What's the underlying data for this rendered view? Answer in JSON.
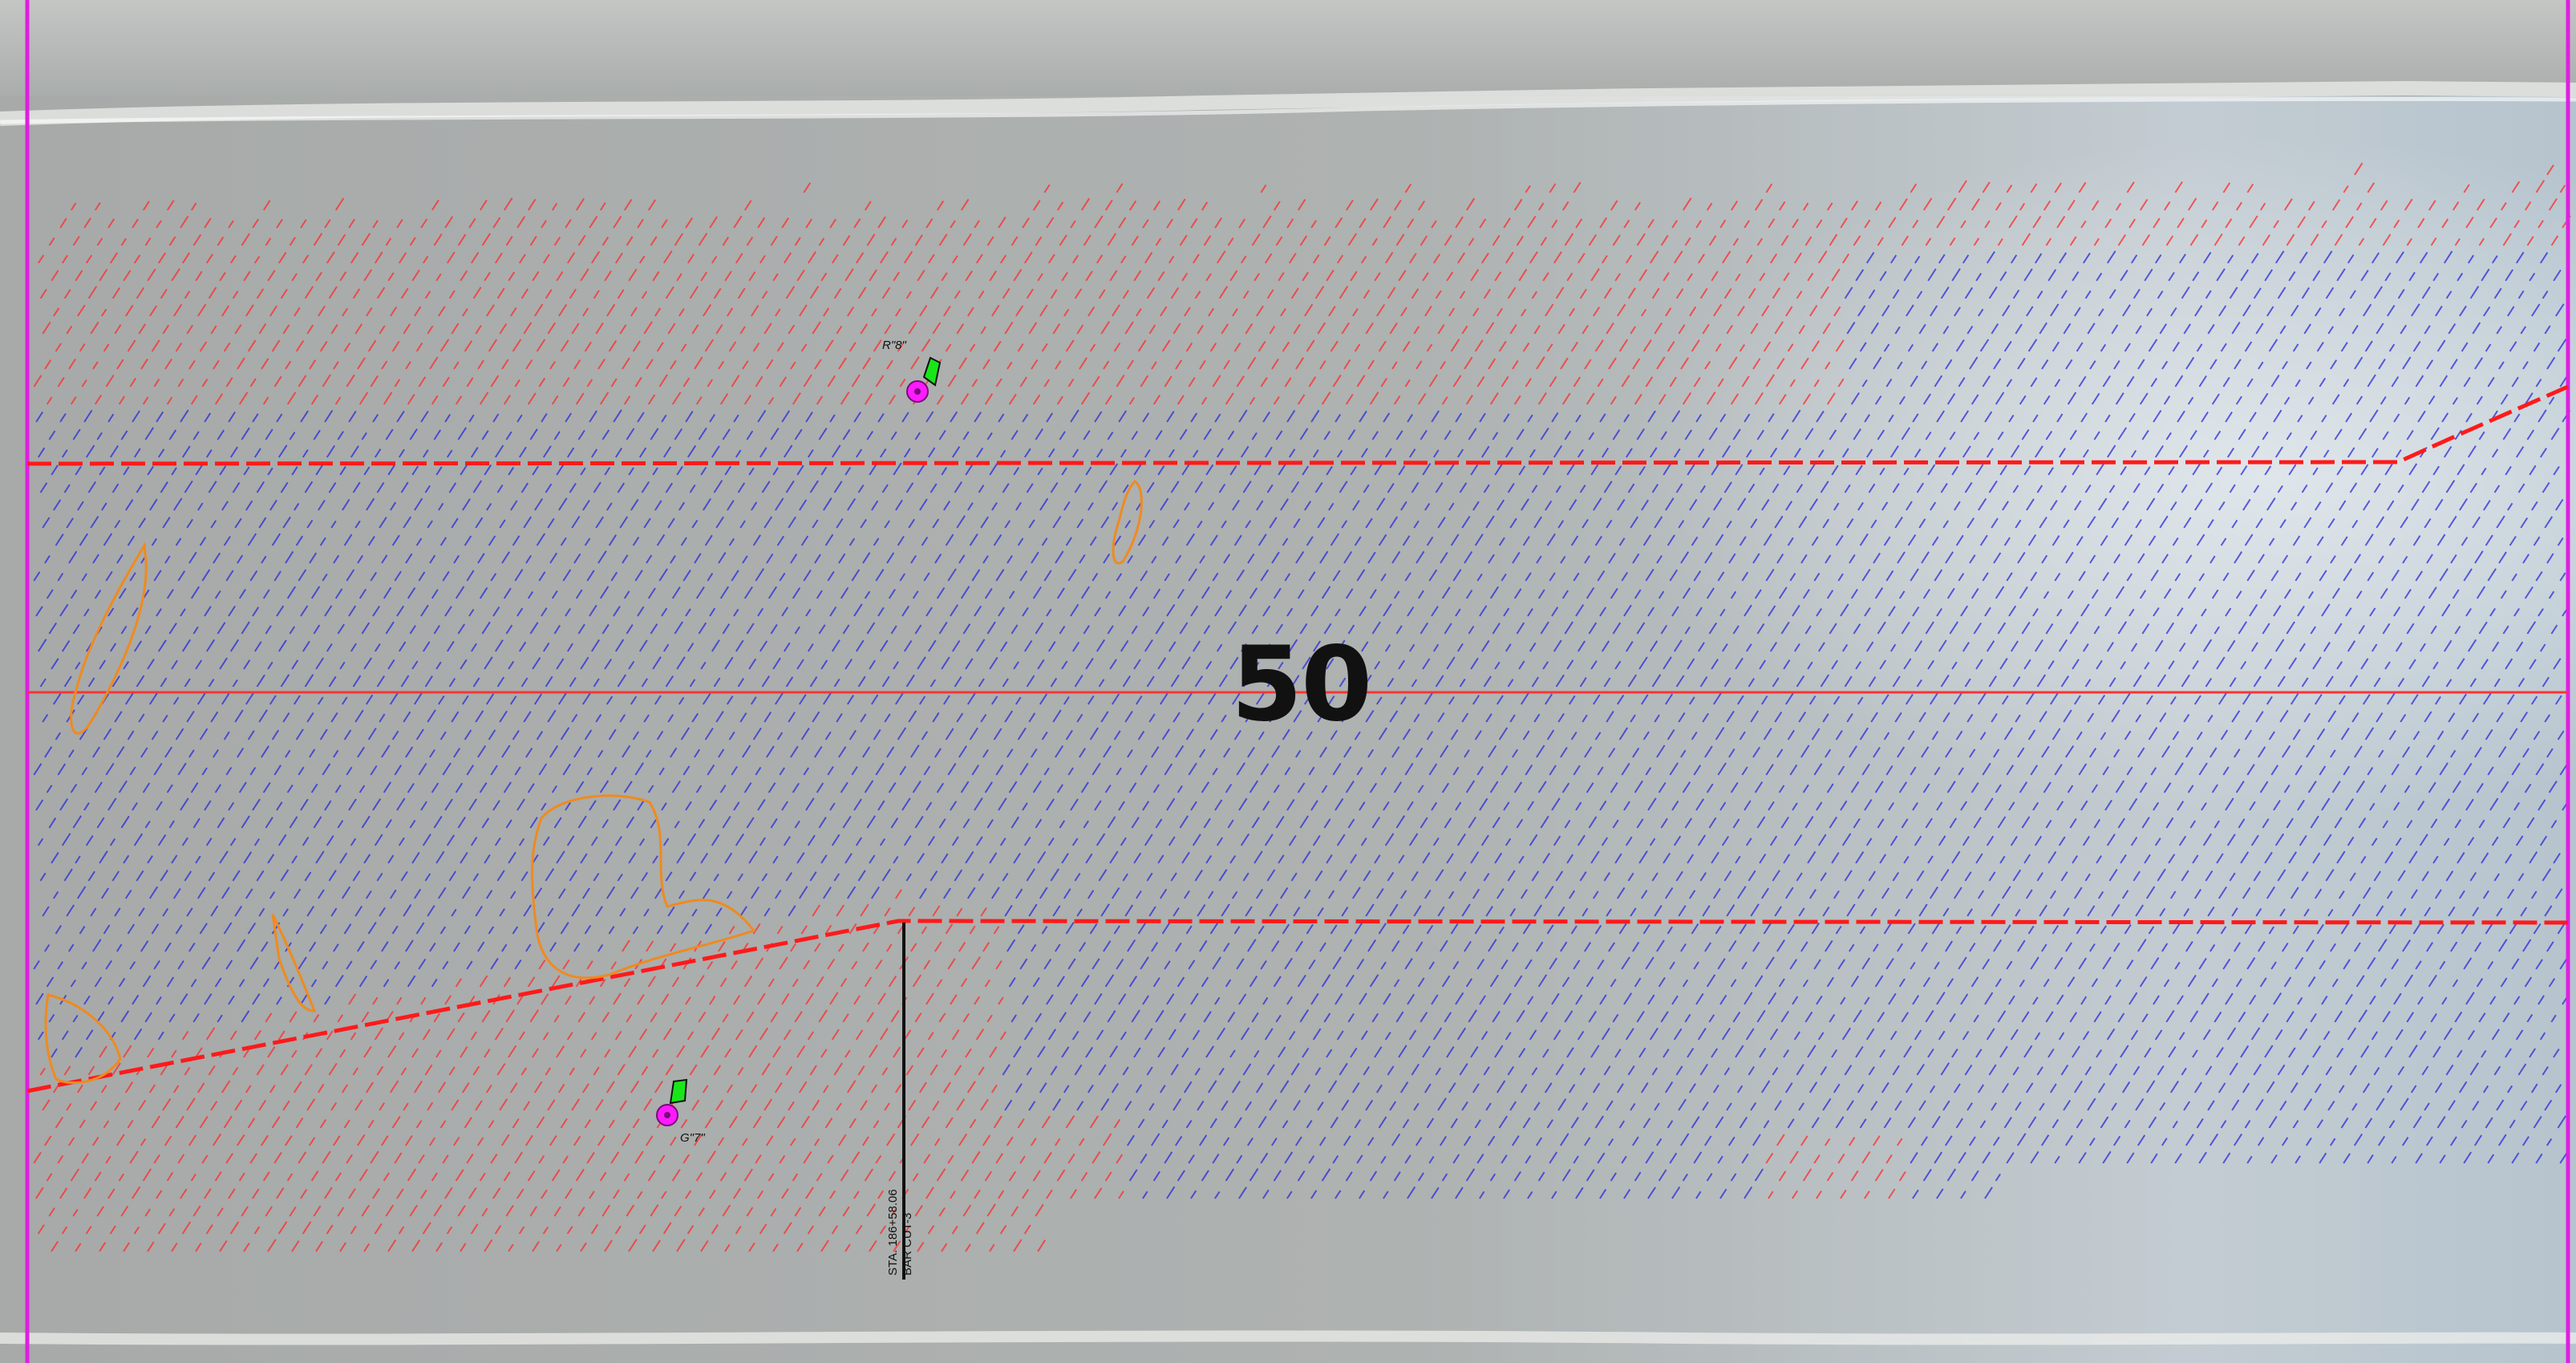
{
  "map": {
    "sheet_number": "50",
    "station_label": "STA. 186+58.06",
    "cut_label": "BAR CUT-3",
    "buoy_red_label": "R\"8\"",
    "buoy_green_label": "G\"7\"",
    "colors": {
      "shoal": "#ff2a2a",
      "deep": "#2a2ad8",
      "channel_limit": "#ff1a1a",
      "centerline": "#ff3333",
      "contour": "#f08a1e",
      "sheet_limit": "#e01ee0",
      "buoy_red": "#ff1aff",
      "buoy_green": "#19e619",
      "water": "#a9adac",
      "shore_foam": "#e8eae7"
    },
    "icons": {
      "red_buoy": "red-buoy-icon",
      "green_buoy": "green-buoy-icon"
    }
  }
}
